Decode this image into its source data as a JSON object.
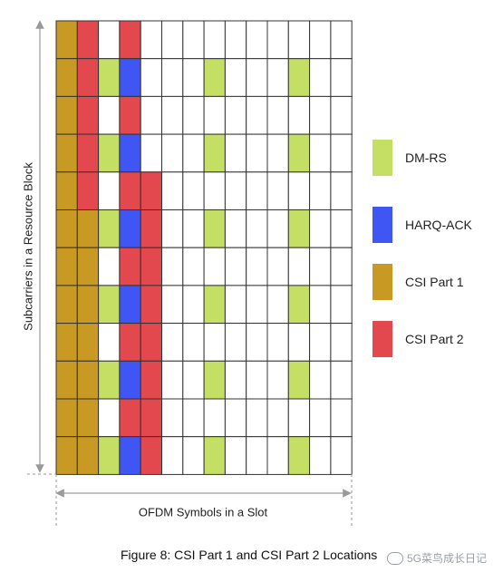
{
  "y_axis_label": "Subcarriers in a Resource Block",
  "x_axis_label": "OFDM Symbols in a Slot",
  "caption": "Figure 8: CSI Part 1 and CSI Part 2 Locations",
  "watermark": "5G菜鸟成长日记",
  "legend": [
    {
      "key": "dmrs",
      "label": "DM-RS"
    },
    {
      "key": "harq",
      "label": "HARQ-ACK"
    },
    {
      "key": "csi1",
      "label": "CSI Part 1"
    },
    {
      "key": "csi2",
      "label": "CSI Part 2"
    }
  ],
  "colors": {
    "dmrs": "#c5de64",
    "harq": "#3f56f5",
    "csi1": "#c89a24",
    "csi2": "#e3484f",
    "empty": "#ffffff",
    "grid_line": "#333333",
    "arrow": "#9a9a9a"
  },
  "grid": {
    "columns": 14,
    "rows": [
      [
        "csi1",
        "csi2",
        "empty",
        "csi2",
        "empty",
        "empty",
        "empty",
        "empty",
        "empty",
        "empty",
        "empty",
        "empty",
        "empty",
        "empty"
      ],
      [
        "csi1",
        "csi2",
        "dmrs",
        "harq",
        "empty",
        "empty",
        "empty",
        "dmrs",
        "empty",
        "empty",
        "empty",
        "dmrs",
        "empty",
        "empty"
      ],
      [
        "csi1",
        "csi2",
        "empty",
        "csi2",
        "empty",
        "empty",
        "empty",
        "empty",
        "empty",
        "empty",
        "empty",
        "empty",
        "empty",
        "empty"
      ],
      [
        "csi1",
        "csi2",
        "dmrs",
        "harq",
        "empty",
        "empty",
        "empty",
        "dmrs",
        "empty",
        "empty",
        "empty",
        "dmrs",
        "empty",
        "empty"
      ],
      [
        "csi1",
        "csi2",
        "empty",
        "csi2",
        "csi2",
        "empty",
        "empty",
        "empty",
        "empty",
        "empty",
        "empty",
        "empty",
        "empty",
        "empty"
      ],
      [
        "csi1",
        "csi1",
        "dmrs",
        "harq",
        "csi2",
        "empty",
        "empty",
        "dmrs",
        "empty",
        "empty",
        "empty",
        "dmrs",
        "empty",
        "empty"
      ],
      [
        "csi1",
        "csi1",
        "empty",
        "csi2",
        "csi2",
        "empty",
        "empty",
        "empty",
        "empty",
        "empty",
        "empty",
        "empty",
        "empty",
        "empty"
      ],
      [
        "csi1",
        "csi1",
        "dmrs",
        "harq",
        "csi2",
        "empty",
        "empty",
        "dmrs",
        "empty",
        "empty",
        "empty",
        "dmrs",
        "empty",
        "empty"
      ],
      [
        "csi1",
        "csi1",
        "empty",
        "csi2",
        "csi2",
        "empty",
        "empty",
        "empty",
        "empty",
        "empty",
        "empty",
        "empty",
        "empty",
        "empty"
      ],
      [
        "csi1",
        "csi1",
        "dmrs",
        "harq",
        "csi2",
        "empty",
        "empty",
        "dmrs",
        "empty",
        "empty",
        "empty",
        "dmrs",
        "empty",
        "empty"
      ],
      [
        "csi1",
        "csi1",
        "empty",
        "csi2",
        "csi2",
        "empty",
        "empty",
        "empty",
        "empty",
        "empty",
        "empty",
        "empty",
        "empty",
        "empty"
      ],
      [
        "csi1",
        "csi1",
        "dmrs",
        "harq",
        "csi2",
        "empty",
        "empty",
        "dmrs",
        "empty",
        "empty",
        "empty",
        "dmrs",
        "empty",
        "empty"
      ]
    ]
  }
}
